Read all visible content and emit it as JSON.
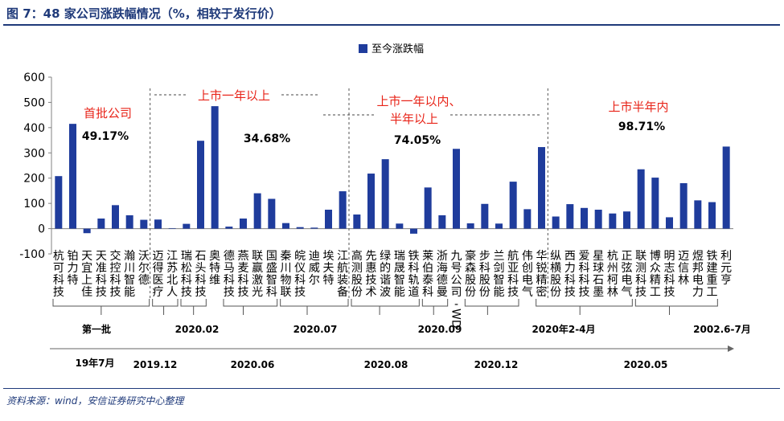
{
  "figure": {
    "title": "图 7：48 家公司涨跌幅情况（%，相较于发行价）",
    "source": "资料来源：wind，安信证券研究中心整理"
  },
  "chart_data": {
    "type": "bar",
    "title": "",
    "xlabel": "",
    "ylabel": "",
    "ylim": [
      -100,
      600
    ],
    "yticks": [
      -100,
      0,
      100,
      200,
      300,
      400,
      500,
      600
    ],
    "grid": false,
    "legend_position": "top-center",
    "bar_color": "#1f3c9c",
    "series": [
      {
        "name": "至今涨跌幅",
        "values": [
          208,
          415,
          -18,
          40,
          93,
          53,
          35,
          36,
          2,
          19,
          348,
          485,
          8,
          40,
          140,
          118,
          22,
          6,
          4,
          75,
          148,
          56,
          218,
          275,
          20,
          -20,
          163,
          53,
          316,
          21,
          98,
          20,
          186,
          77,
          323,
          48,
          97,
          82,
          75,
          60,
          68,
          235,
          202,
          45,
          180,
          112,
          105,
          325
        ]
      }
    ],
    "categories": [
      [
        "杭",
        "可",
        "科",
        "技"
      ],
      [
        "铂",
        "力",
        "特"
      ],
      [
        "天",
        "宜",
        "上",
        "佳"
      ],
      [
        "天",
        "准",
        "科",
        "技"
      ],
      [
        "交",
        "控",
        "科",
        "技"
      ],
      [
        "瀚",
        "川",
        "智",
        "能"
      ],
      [
        "沃",
        "尔",
        "德"
      ],
      [
        "迈",
        "得",
        "医",
        "疗"
      ],
      [
        "江",
        "苏",
        "北",
        "人"
      ],
      [
        "瑞",
        "松",
        "科",
        "技"
      ],
      [
        "石",
        "头",
        "科",
        "技"
      ],
      [
        "奥",
        "特",
        "维"
      ],
      [
        "德",
        "马",
        "科",
        "技"
      ],
      [
        "燕",
        "麦",
        "科",
        "技"
      ],
      [
        "联",
        "赢",
        "激",
        "光"
      ],
      [
        "国",
        "盛",
        "智",
        "科"
      ],
      [
        "秦",
        "川",
        "物",
        "联"
      ],
      [
        "皖",
        "仪",
        "科",
        "技"
      ],
      [
        "迪",
        "威",
        "尔"
      ],
      [
        "埃",
        "夫",
        "特"
      ],
      [
        "江",
        "航",
        "装",
        "备"
      ],
      [
        "高",
        "测",
        "股",
        "份"
      ],
      [
        "先",
        "惠",
        "技",
        "术"
      ],
      [
        "绿",
        "的",
        "谐",
        "波"
      ],
      [
        "瑞",
        "晟",
        "智",
        "能"
      ],
      [
        "铁",
        "科",
        "轨",
        "道"
      ],
      [
        "莱",
        "伯",
        "泰",
        "科"
      ],
      [
        "浙",
        "海",
        "德",
        "曼"
      ],
      [
        "九",
        "号",
        "公",
        "司",
        "-",
        "WD"
      ],
      [
        "豪",
        "森",
        "股",
        "份"
      ],
      [
        "步",
        "科",
        "股",
        "份"
      ],
      [
        "兰",
        "剑",
        "智",
        "能"
      ],
      [
        "航",
        "亚",
        "科",
        "技"
      ],
      [
        "伟",
        "创",
        "电",
        "气"
      ],
      [
        "华",
        "锐",
        "精",
        "密"
      ],
      [
        "纵",
        "横",
        "股",
        "份"
      ],
      [
        "西",
        "力",
        "科",
        "技"
      ],
      [
        "爱",
        "科",
        "科",
        "技"
      ],
      [
        "星",
        "球",
        "石",
        "墨"
      ],
      [
        "杭",
        "州",
        "柯",
        "林"
      ],
      [
        "正",
        "弦",
        "电",
        "气"
      ],
      [
        "联",
        "测",
        "科",
        "技"
      ],
      [
        "博",
        "众",
        "精",
        "工"
      ],
      [
        "明",
        "志",
        "科",
        "技"
      ],
      [
        "迈",
        "信",
        "林"
      ],
      [
        "煜",
        "邦",
        "电",
        "力"
      ],
      [
        "铁",
        "建",
        "重",
        "工"
      ],
      [
        "利",
        "元",
        "亨"
      ]
    ],
    "annotations": {
      "group_labels": [
        {
          "label": "首批公司",
          "value": "49.17%"
        },
        {
          "label": "上市一年以上",
          "value": "34.68%"
        },
        {
          "label": "上市一年以内、",
          "label2": "半年以上",
          "value": "74.05%"
        },
        {
          "label": "上市半年内",
          "value": "98.71%"
        }
      ],
      "batch_labels": [
        "第一批",
        "2020.02",
        "2020.07",
        "2020.09",
        "2020年2-4月",
        "2002.6-7月"
      ],
      "timeline_labels": [
        "19年7月",
        "2019.12",
        "2020.06",
        "2020.08",
        "2020.12",
        "2020.05"
      ]
    },
    "colors": {
      "bar": "#1f3c9c",
      "annotation_red": "#e8251a",
      "axis": "#808080"
    }
  }
}
